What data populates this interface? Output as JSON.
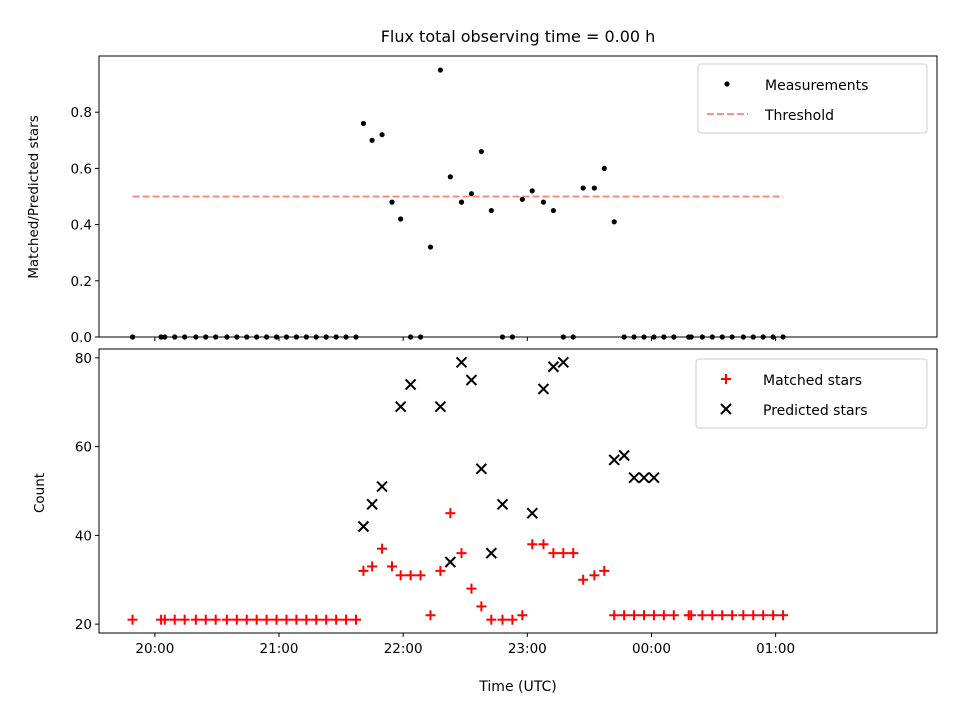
{
  "chart_data": [
    {
      "type": "scatter",
      "title": "Flux total observing time = 0.00 h",
      "xlabel": "",
      "ylabel": "Matched/Predicted stars",
      "x_unit": "hours since 20:00 UTC",
      "xlim": [
        -0.45,
        6.3
      ],
      "ylim": [
        0,
        1.0
      ],
      "yticks": [
        0.0,
        0.2,
        0.4,
        0.6,
        0.8
      ],
      "ytick_labels": [
        "0.0",
        "0.2",
        "0.4",
        "0.6",
        "0.8"
      ],
      "legend_position": "top-right",
      "series": [
        {
          "name": "Measurements",
          "marker": "dot",
          "color": "#000000",
          "x": [
            -0.18,
            0.05,
            0.08,
            0.16,
            0.24,
            0.33,
            0.41,
            0.49,
            0.58,
            0.66,
            0.74,
            0.82,
            0.9,
            0.98,
            1.06,
            1.14,
            1.22,
            1.3,
            1.38,
            1.46,
            1.54,
            1.62,
            1.68,
            1.75,
            1.83,
            1.91,
            1.98,
            2.06,
            2.14,
            2.22,
            2.3,
            2.38,
            2.47,
            2.55,
            2.63,
            2.71,
            2.8,
            2.88,
            2.96,
            3.04,
            3.13,
            3.21,
            3.29,
            3.37,
            3.45,
            3.54,
            3.62,
            3.7,
            3.78,
            3.86,
            3.94,
            4.02,
            4.1,
            4.18,
            4.3,
            4.32,
            4.41,
            4.49,
            4.57,
            4.65,
            4.74,
            4.82,
            4.9,
            4.98,
            5.06
          ],
          "y": [
            0,
            0,
            0,
            0,
            0,
            0,
            0,
            0,
            0,
            0,
            0,
            0,
            0,
            0,
            0,
            0,
            0,
            0,
            0,
            0,
            0,
            0,
            0.76,
            0.7,
            0.72,
            0.48,
            0.42,
            0,
            0,
            0.32,
            0.95,
            0.57,
            0.48,
            0.51,
            0.66,
            0.45,
            0,
            0,
            0.49,
            0.52,
            0.48,
            0.45,
            0,
            0,
            0.53,
            0.53,
            0.6,
            0.41,
            0,
            0,
            0,
            0,
            0,
            0,
            0,
            0,
            0,
            0,
            0,
            0,
            0,
            0,
            0,
            0,
            0
          ]
        },
        {
          "name": "Threshold",
          "marker": "dashed-line",
          "color": "#ff7f7f",
          "x": [
            -0.18,
            5.06
          ],
          "y": [
            0.5,
            0.5
          ]
        }
      ]
    },
    {
      "type": "scatter",
      "title": "",
      "xlabel": "Time (UTC)",
      "ylabel": "Count",
      "x_unit": "hours since 20:00 UTC",
      "xlim": [
        -0.45,
        6.3
      ],
      "ylim": [
        18,
        82
      ],
      "yticks": [
        20,
        40,
        60,
        80
      ],
      "ytick_labels": [
        "20",
        "40",
        "60",
        "80"
      ],
      "xticks": [
        0,
        1,
        2,
        3,
        4,
        5
      ],
      "xtick_labels": [
        "20:00",
        "21:00",
        "22:00",
        "23:00",
        "00:00",
        "01:00"
      ],
      "legend_position": "top-right",
      "series": [
        {
          "name": "Matched stars",
          "marker": "plus",
          "color": "#ff0000",
          "x": [
            -0.18,
            0.05,
            0.08,
            0.16,
            0.24,
            0.33,
            0.41,
            0.49,
            0.58,
            0.66,
            0.74,
            0.82,
            0.9,
            0.98,
            1.06,
            1.14,
            1.22,
            1.3,
            1.38,
            1.46,
            1.54,
            1.62,
            1.68,
            1.75,
            1.83,
            1.91,
            1.98,
            2.06,
            2.14,
            2.22,
            2.3,
            2.38,
            2.47,
            2.55,
            2.63,
            2.71,
            2.8,
            2.88,
            2.96,
            3.04,
            3.13,
            3.21,
            3.29,
            3.37,
            3.45,
            3.54,
            3.62,
            3.7,
            3.78,
            3.86,
            3.94,
            4.02,
            4.1,
            4.18,
            4.3,
            4.32,
            4.41,
            4.49,
            4.57,
            4.65,
            4.74,
            4.82,
            4.9,
            4.98,
            5.06
          ],
          "y": [
            21,
            21,
            21,
            21,
            21,
            21,
            21,
            21,
            21,
            21,
            21,
            21,
            21,
            21,
            21,
            21,
            21,
            21,
            21,
            21,
            21,
            21,
            32,
            33,
            37,
            33,
            31,
            31,
            31,
            22,
            32,
            45,
            36,
            28,
            24,
            21,
            21,
            21,
            22,
            38,
            38,
            36,
            36,
            36,
            30,
            31,
            32,
            22,
            22,
            22,
            22,
            22,
            22,
            22,
            22,
            22,
            22,
            22,
            22,
            22,
            22,
            22,
            22,
            22,
            22
          ]
        },
        {
          "name": "Predicted stars",
          "marker": "x",
          "color": "#000000",
          "x": [
            1.68,
            1.75,
            1.83,
            1.98,
            2.06,
            2.3,
            2.38,
            2.47,
            2.55,
            2.63,
            2.71,
            2.8,
            3.04,
            3.13,
            3.21,
            3.29,
            3.7,
            3.78,
            3.86,
            3.94,
            4.02
          ],
          "y": [
            42,
            47,
            51,
            69,
            74,
            69,
            34,
            79,
            75,
            55,
            36,
            47,
            45,
            73,
            78,
            79,
            57,
            58,
            53,
            53,
            53
          ]
        }
      ]
    }
  ]
}
